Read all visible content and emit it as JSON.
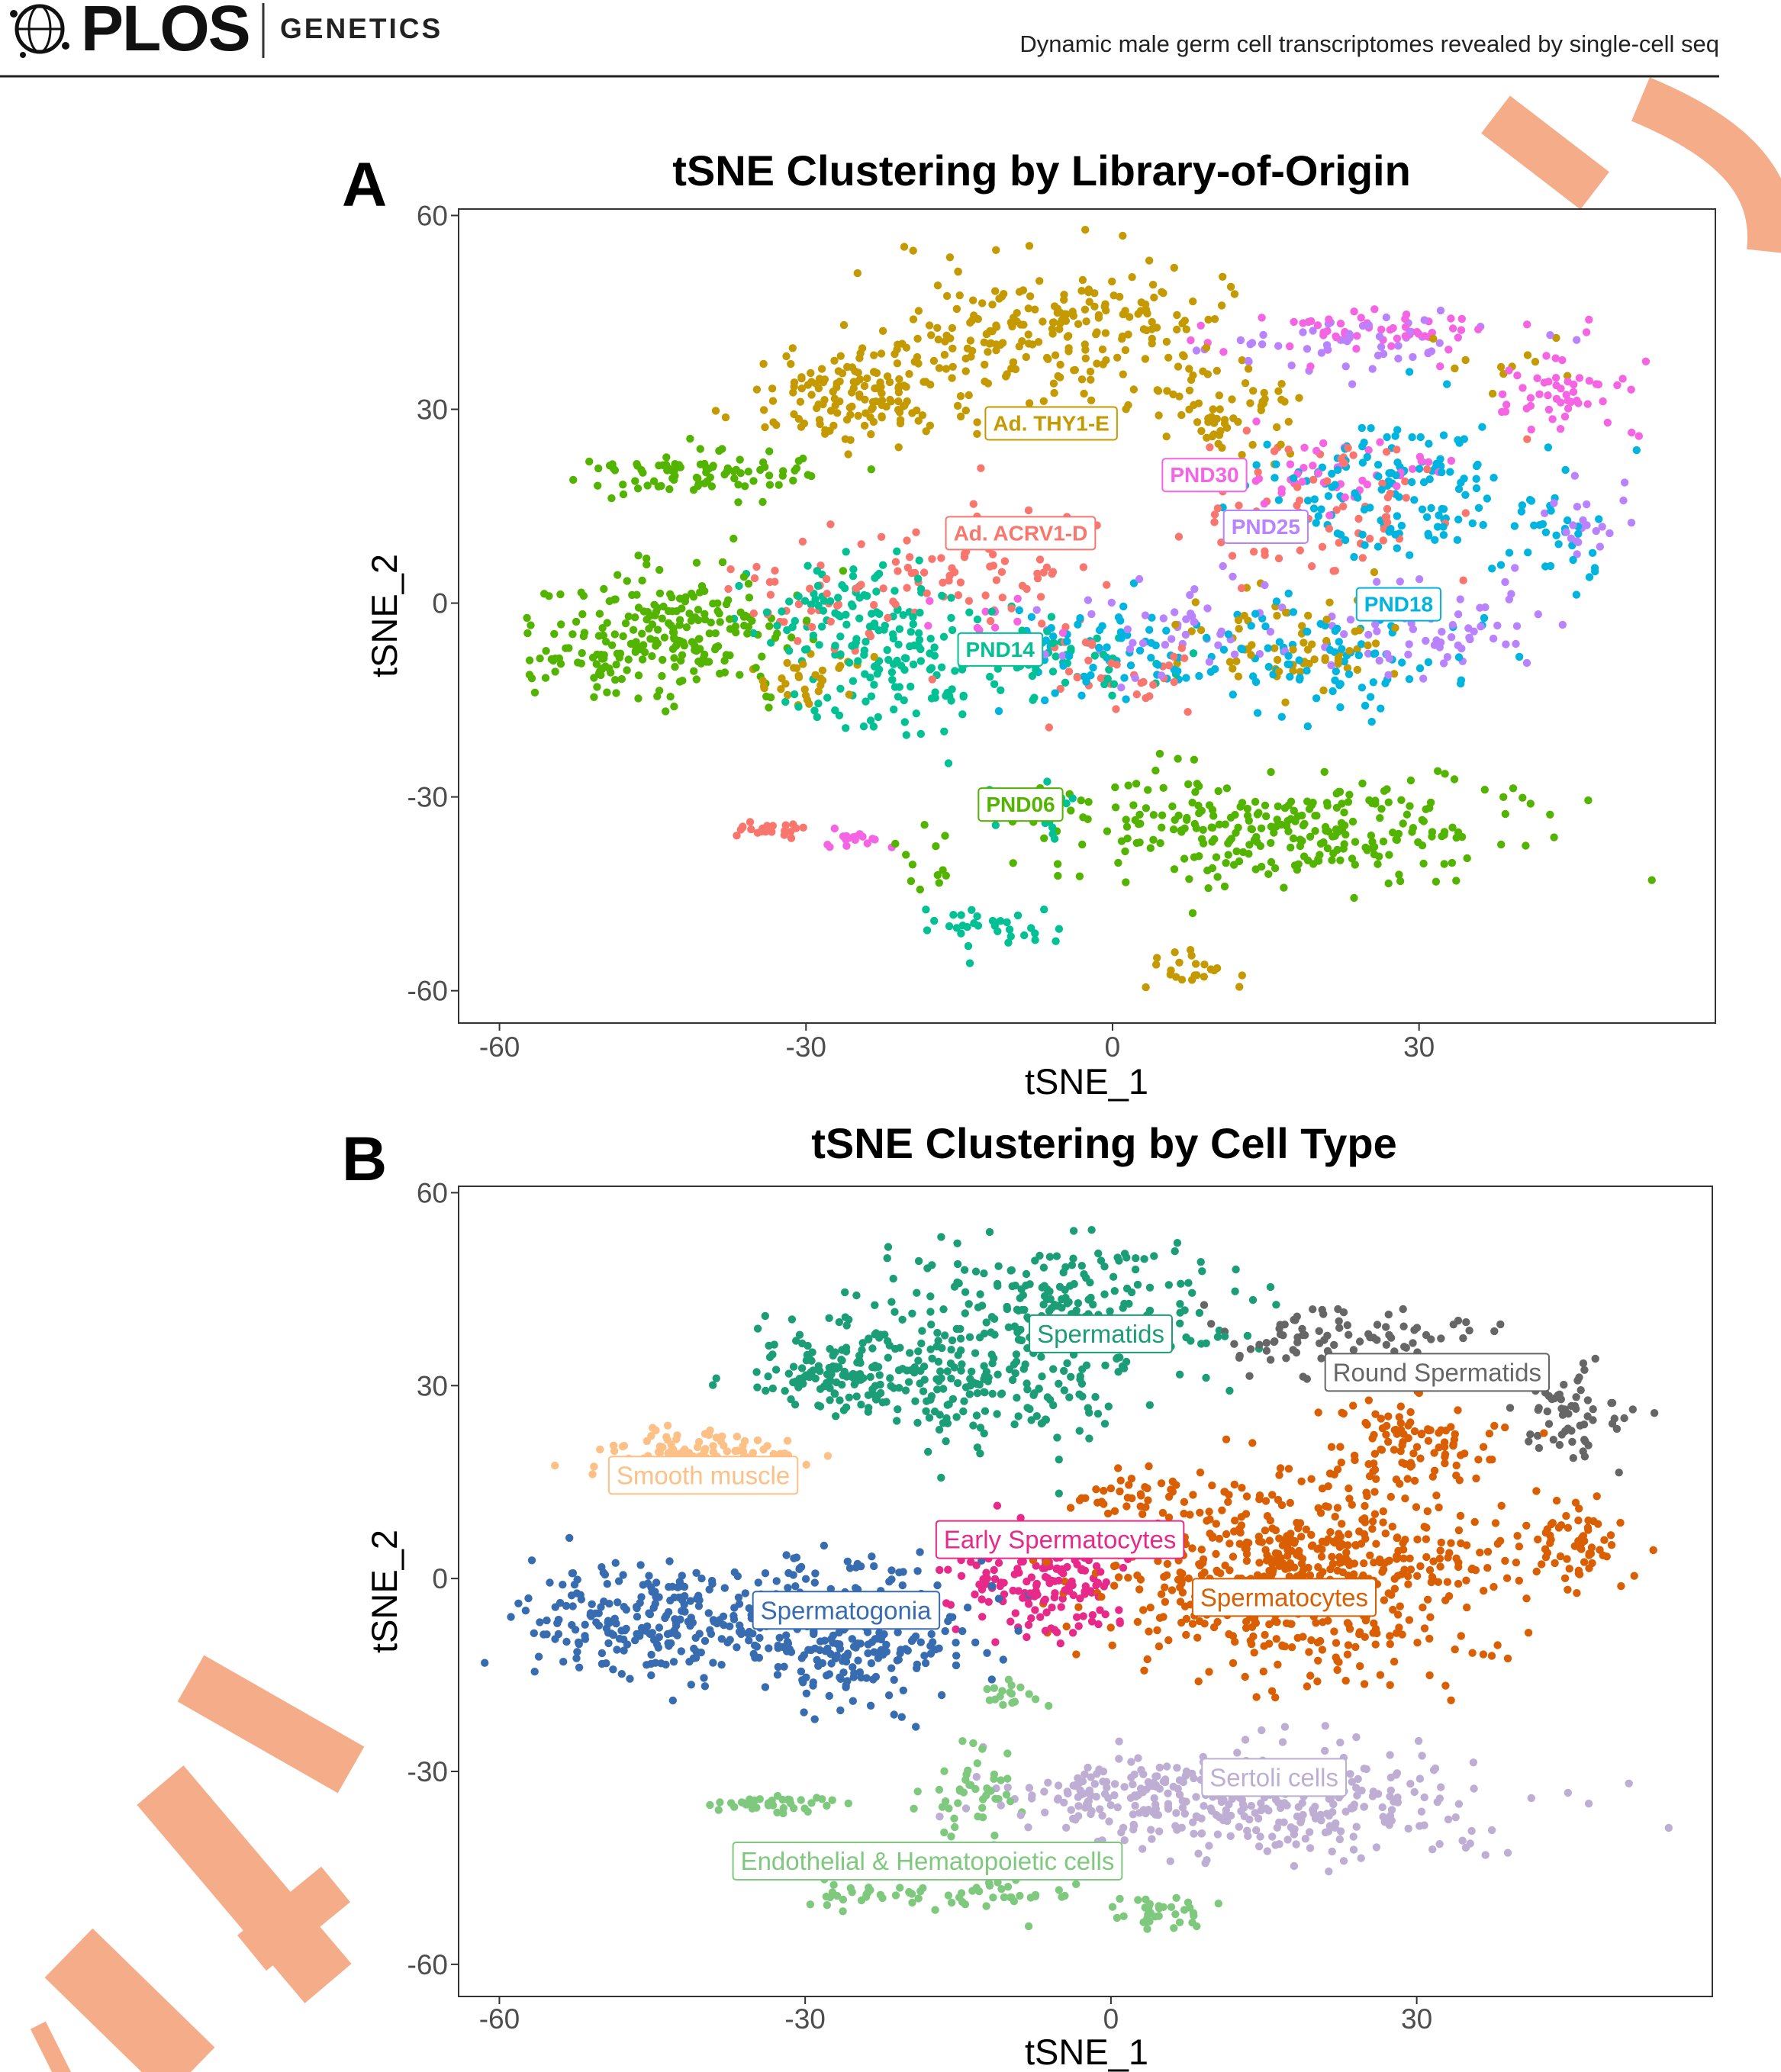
{
  "header": {
    "logo": "PLOS",
    "journal": "GENETICS",
    "running_title": "Dynamic male germ cell transcriptomes revealed by single-cell seq"
  },
  "colors": {
    "watermark": "#f4a883",
    "panel_border": "#333333",
    "tick_text": "#4d4d4d"
  },
  "chart_data": [
    {
      "panel": "A",
      "type": "scatter",
      "title": "tSNE Clustering by Library-of-Origin",
      "xlabel": "tSNE_1",
      "ylabel": "tSNE_2",
      "xlim": [
        -64,
        59
      ],
      "ylim": [
        -65,
        61
      ],
      "xticks": [
        -60,
        -30,
        0,
        30
      ],
      "yticks": [
        60,
        30,
        0,
        -30,
        -60
      ],
      "grid": false,
      "legend": "none",
      "series": [
        {
          "name": "Ad. THY1-E",
          "color": "#c49a00",
          "label_at": [
            -6,
            28
          ]
        },
        {
          "name": "PND30",
          "color": "#f564e3",
          "label_at": [
            9,
            20
          ]
        },
        {
          "name": "PND25",
          "color": "#b983ff",
          "label_at": [
            15,
            12
          ]
        },
        {
          "name": "Ad. ACRV1-D",
          "color": "#f8766d",
          "label_at": [
            -9,
            11
          ]
        },
        {
          "name": "PND18",
          "color": "#00b4e0",
          "label_at": [
            28,
            0
          ]
        },
        {
          "name": "PND14",
          "color": "#00c094",
          "label_at": [
            -11,
            -7
          ]
        },
        {
          "name": "PND06",
          "color": "#53b400",
          "label_at": [
            -9,
            -31
          ]
        }
      ]
    },
    {
      "panel": "B",
      "type": "scatter",
      "title": "tSNE Clustering by Cell Type",
      "xlabel": "tSNE_1",
      "ylabel": "tSNE_2",
      "xlim": [
        -64,
        59
      ],
      "ylim": [
        -65,
        61
      ],
      "xticks": [
        -60,
        -30,
        0,
        30
      ],
      "yticks": [
        60,
        30,
        0,
        -30,
        -60
      ],
      "grid": false,
      "legend": "none",
      "series": [
        {
          "name": "Spermatids",
          "color": "#1b9e77",
          "label_at": [
            -1,
            38
          ]
        },
        {
          "name": "Round Spermatids",
          "color": "#666666",
          "label_at": [
            32,
            32
          ]
        },
        {
          "name": "Smooth muscle",
          "color": "#fdc086",
          "label_at": [
            -40,
            16
          ]
        },
        {
          "name": "Early Spermatocytes",
          "color": "#e7298a",
          "label_at": [
            -5,
            6
          ]
        },
        {
          "name": "Spermatocytes",
          "color": "#d95f02",
          "label_at": [
            17,
            -3
          ]
        },
        {
          "name": "Spermatogonia",
          "color": "#386cb0",
          "label_at": [
            -26,
            -5
          ]
        },
        {
          "name": "Sertoli cells",
          "color": "#beaed4",
          "label_at": [
            16,
            -31
          ]
        },
        {
          "name": "Endothelial & Hematopoietic cells",
          "color": "#7fc97f",
          "label_at": [
            -18,
            -44
          ]
        }
      ]
    }
  ]
}
